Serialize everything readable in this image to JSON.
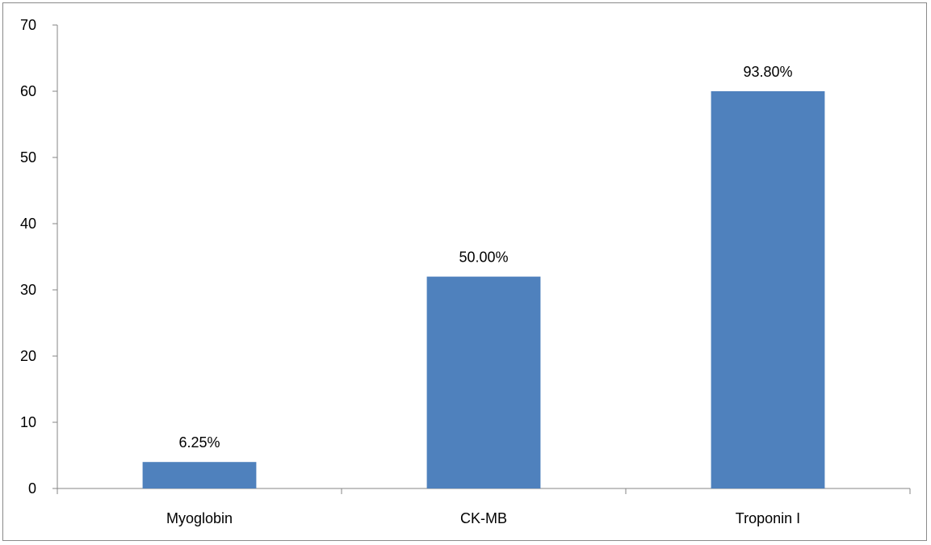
{
  "chart_data": {
    "type": "bar",
    "title": "",
    "xlabel": "",
    "ylabel": "",
    "categories": [
      "Myoglobin",
      "CK-MB",
      "Troponin I"
    ],
    "values": [
      4,
      32,
      60
    ],
    "data_labels": [
      "6.25%",
      "50.00%",
      "93.80%"
    ],
    "ylim": [
      0,
      70
    ],
    "yticks": [
      0,
      10,
      20,
      30,
      40,
      50,
      60,
      70
    ],
    "grid": false,
    "legend": "none",
    "bar_color": "#4F81BD",
    "axis_color": "#868686"
  }
}
